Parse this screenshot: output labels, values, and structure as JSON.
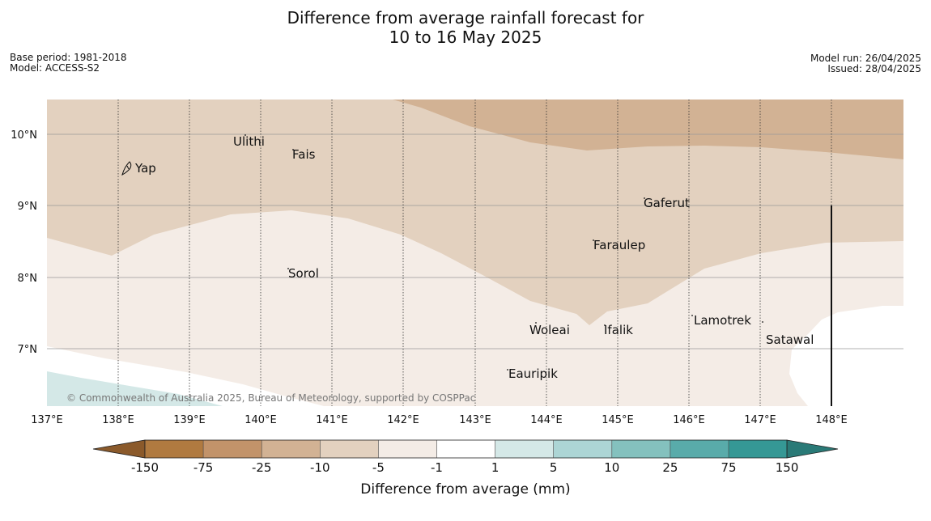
{
  "title": {
    "line1": "Difference from average rainfall forecast for",
    "line2": "10 to 16 May 2025"
  },
  "meta": {
    "base_period": "Base period: 1981-2018",
    "model": "Model: ACCESS-S2",
    "model_run": "Model run: 26/04/2025",
    "issued": "Issued: 28/04/2025"
  },
  "map": {
    "lon_labels": [
      "137°E",
      "138°E",
      "139°E",
      "140°E",
      "141°E",
      "142°E",
      "143°E",
      "144°E",
      "145°E",
      "146°E",
      "147°E",
      "148°E"
    ],
    "lat_labels": [
      "10°N",
      "9°N",
      "8°N",
      "7°N"
    ],
    "places": [
      "Yap",
      "Ulithi",
      "Fais",
      "Sorol",
      "Gaferut",
      "Faraulep",
      "Woleai",
      "Ifalik",
      "Lamotrek",
      "Satawal",
      "Eauripik"
    ],
    "copyright": "© Commonwealth of Australia 2025, Bureau of Meteorology, supported by COSPPac",
    "colors": {
      "dry_10_25": "#d2b294",
      "dry_5_10": "#e3d1bf",
      "dry_1_5": "#f4ece6",
      "neutral": "#ffffff",
      "wet_1_5": "#d4e8e7"
    }
  },
  "colorbar": {
    "labels": [
      "-150",
      "-75",
      "-25",
      "-10",
      "-5",
      "-1",
      "1",
      "5",
      "10",
      "25",
      "75",
      "150"
    ],
    "colors": [
      "#8b5a2b",
      "#b07a40",
      "#c2936a",
      "#d2b294",
      "#e3d1bf",
      "#f4ece6",
      "#ffffff",
      "#d4e8e7",
      "#acd5d5",
      "#84c1be",
      "#59abaa",
      "#359895",
      "#2a7a77"
    ],
    "label": "Difference from average (mm)"
  }
}
